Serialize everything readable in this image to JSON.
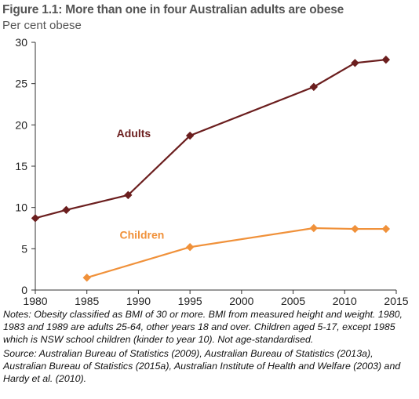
{
  "title": "Figure 1.1: More than one in four Australian adults are obese",
  "subtitle": "Per cent obese",
  "notes": "Notes: Obesity classified as BMI of 30 or more. BMI from measured height and weight. 1980, 1983 and 1989 are adults 25-64, other years 18 and over. Children aged 5-17, except 1985 which is NSW school children (kinder to year 10). Not age-standardised.",
  "source": "Source: Australian Bureau of Statistics (2009), Australian Bureau of Statistics (2013a), Australian Bureau of Statistics (2015a), Australian Institute of Health and Welfare (2003) and Hardy et al. (2010).",
  "colors": {
    "adults": "#6b1e1e",
    "children": "#f0913a",
    "axis": "#333333",
    "grid": "#cccccc"
  },
  "chart_data": {
    "type": "line",
    "title": "Figure 1.1: More than one in four Australian adults are obese",
    "ylabel": "Per cent obese",
    "xlim": [
      1980,
      2015
    ],
    "ylim": [
      0,
      30
    ],
    "xticks": [
      1980,
      1985,
      1990,
      1995,
      2000,
      2005,
      2010,
      2015
    ],
    "yticks": [
      0,
      5,
      10,
      15,
      20,
      25,
      30
    ],
    "grid": false,
    "series": [
      {
        "name": "Adults",
        "color": "#6b1e1e",
        "marker": "diamond",
        "x": [
          1980,
          1983,
          1989,
          1995,
          2007,
          2011,
          2014
        ],
        "y": [
          8.7,
          9.7,
          11.5,
          18.7,
          24.6,
          27.5,
          27.9
        ]
      },
      {
        "name": "Children",
        "color": "#f0913a",
        "marker": "diamond",
        "x": [
          1985,
          1995,
          2007,
          2011,
          2014
        ],
        "y": [
          1.5,
          5.2,
          7.5,
          7.4,
          7.4
        ]
      }
    ]
  }
}
